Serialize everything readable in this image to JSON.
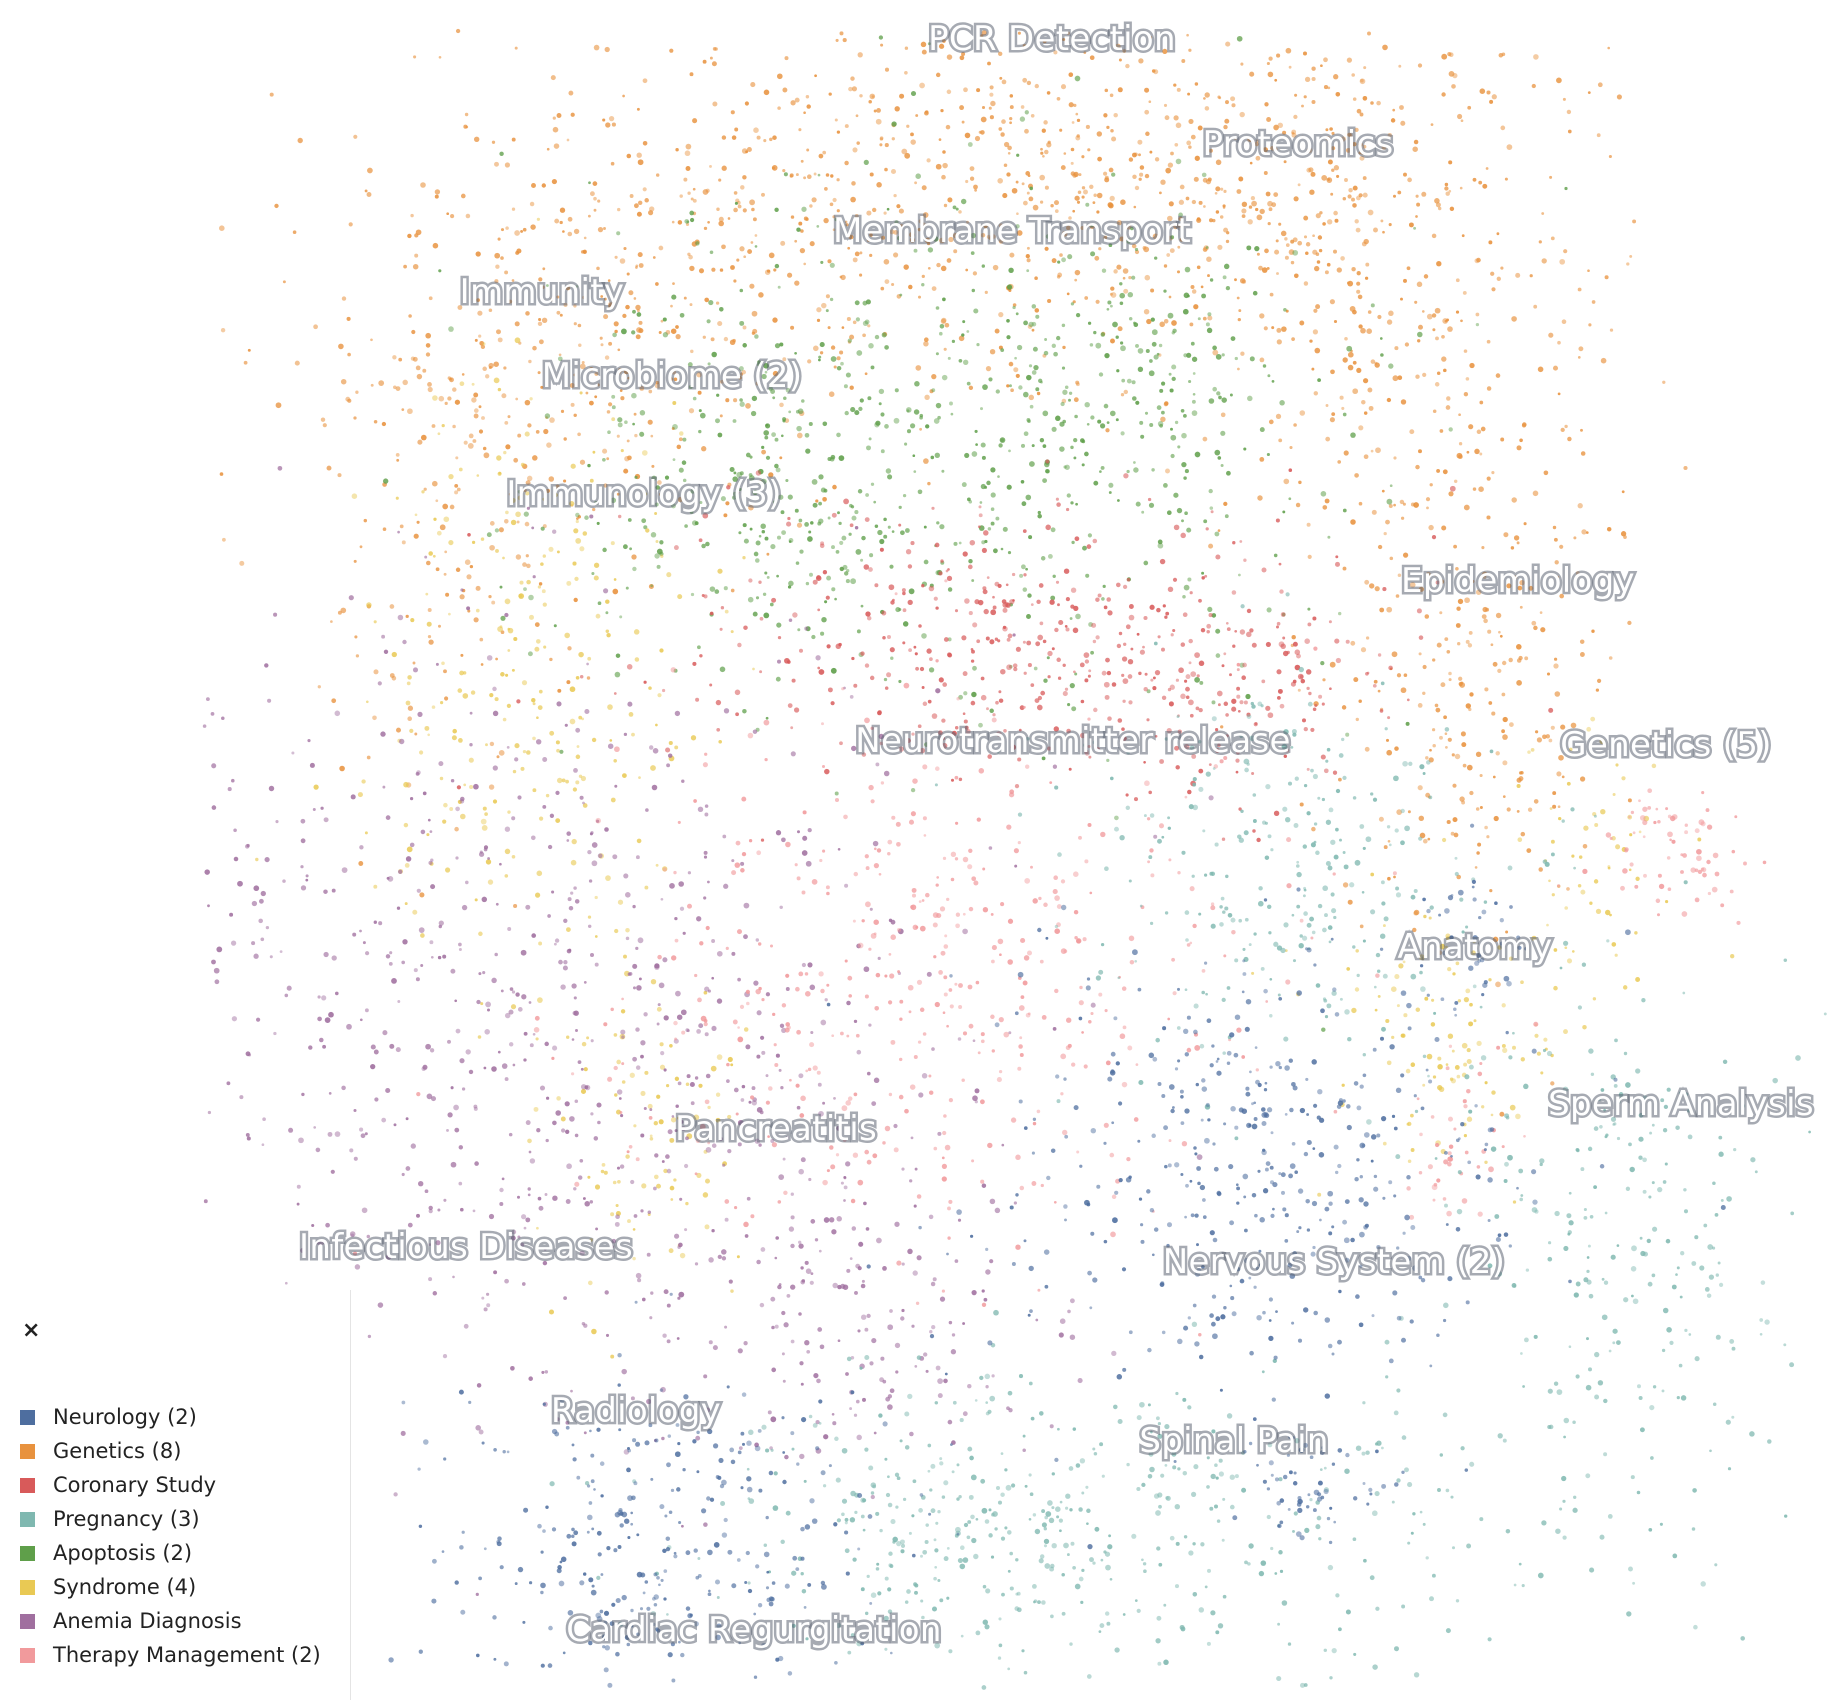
{
  "chart_data": {
    "type": "scatter",
    "title": "",
    "xlabel": "",
    "ylabel": "",
    "grid": false,
    "legend_position": "bottom-left",
    "series": [
      {
        "name": "Neurology (2)",
        "color": "#4e6e9f"
      },
      {
        "name": "Genetics (8)",
        "color": "#e8923e"
      },
      {
        "name": "Coronary Study",
        "color": "#d85a5a"
      },
      {
        "name": "Pregnancy (3)",
        "color": "#7fb8b0"
      },
      {
        "name": "Apoptosis (2)",
        "color": "#5f9f4a"
      },
      {
        "name": "Syndrome (4)",
        "color": "#e9c954"
      },
      {
        "name": "Anemia Diagnosis",
        "color": "#a06f9f"
      },
      {
        "name": "Therapy Management (2)",
        "color": "#f19a9c"
      }
    ],
    "cluster_labels": [
      "PCR Detection",
      "Proteomics",
      "Membrane Transport",
      "Immunity",
      "Microbiome (2)",
      "Immunology (3)",
      "Epidemiology",
      "Neurotransmitter release",
      "Genetics (5)",
      "Anatomy",
      "Sperm Analysis",
      "Pancreatitis",
      "Infectious Diseases",
      "Nervous System (2)",
      "Radiology",
      "Spinal Pain",
      "Cardiac Regurgitation"
    ]
  },
  "legend": {
    "close_symbol": "×"
  }
}
